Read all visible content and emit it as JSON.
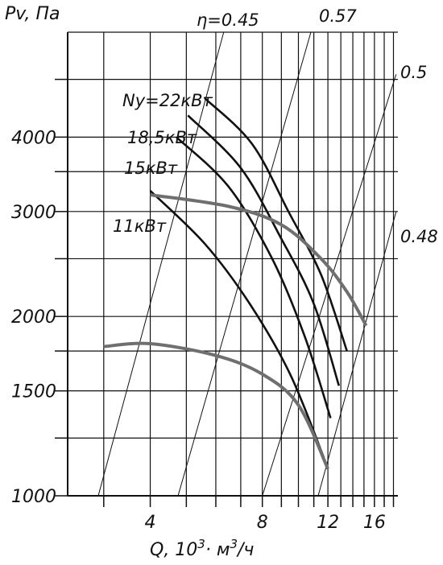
{
  "chart_data": {
    "type": "line",
    "ylabel": "Pv, Па",
    "xlabel": "Q, 10³· м³/ч",
    "xlabel_parts": {
      "a": "Q, 10",
      "b": "3",
      "c": "· м",
      "d": "3",
      "e": "/ч"
    },
    "x_scale": "log",
    "y_scale": "log",
    "xlim": [
      2.4,
      18.5
    ],
    "ylim": [
      1000,
      6000
    ],
    "x_ticks": [
      4,
      8,
      12,
      16
    ],
    "x_tick_labels": [
      "4",
      "8",
      "12",
      "16"
    ],
    "y_ticks": [
      1000,
      1500,
      2000,
      3000,
      4000
    ],
    "y_tick_labels": [
      "1000",
      "1500",
      "2000",
      "3000",
      "4000"
    ],
    "grid": true,
    "efficiency_lines": [
      {
        "label": "η=0.45",
        "points": [
          [
            2.9,
            1000
          ],
          [
            6.3,
            6000
          ]
        ]
      },
      {
        "label": "0.57",
        "points": [
          [
            4.75,
            1000
          ],
          [
            10.8,
            6000
          ]
        ]
      },
      {
        "label": "0.5",
        "points": [
          [
            8.0,
            1000
          ],
          [
            18.3,
            5100
          ]
        ]
      },
      {
        "label": "0.48",
        "points": [
          [
            11.3,
            1000
          ],
          [
            18.3,
            3000
          ]
        ]
      }
    ],
    "power_curves": [
      {
        "label": "Ny=22кВт",
        "points": [
          [
            5.6,
            4650
          ],
          [
            7.5,
            3900
          ],
          [
            9.4,
            3000
          ],
          [
            11.5,
            2350
          ],
          [
            13.5,
            1750
          ]
        ]
      },
      {
        "label": "18,5кВт",
        "points": [
          [
            5.05,
            4350
          ],
          [
            7.0,
            3550
          ],
          [
            9.0,
            2700
          ],
          [
            11.0,
            2100
          ],
          [
            12.85,
            1530
          ]
        ]
      },
      {
        "label": "15кВт",
        "points": [
          [
            4.7,
            4000
          ],
          [
            6.5,
            3300
          ],
          [
            8.5,
            2500
          ],
          [
            10.4,
            1850
          ],
          [
            12.2,
            1350
          ]
        ]
      },
      {
        "label": "11кВт",
        "points": [
          [
            4.0,
            3250
          ],
          [
            5.6,
            2650
          ],
          [
            7.4,
            2100
          ],
          [
            9.5,
            1600
          ],
          [
            11.7,
            1160
          ]
        ]
      }
    ],
    "pressure_curves": [
      {
        "points": [
          [
            4.0,
            3200
          ],
          [
            6.5,
            3060
          ],
          [
            9.0,
            2850
          ],
          [
            11.5,
            2500
          ],
          [
            13.5,
            2200
          ],
          [
            15.2,
            1930
          ]
        ]
      },
      {
        "points": [
          [
            3.0,
            1780
          ],
          [
            4.0,
            1800
          ],
          [
            6.0,
            1720
          ],
          [
            8.0,
            1600
          ],
          [
            10.0,
            1420
          ],
          [
            12.0,
            1110
          ]
        ]
      }
    ]
  }
}
